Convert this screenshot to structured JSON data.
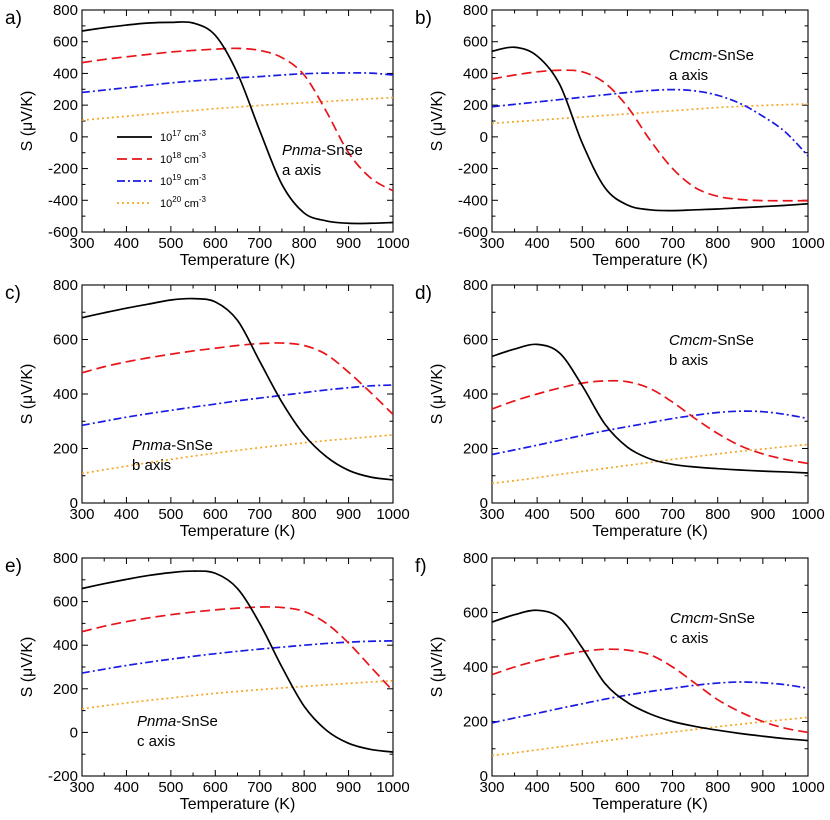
{
  "figure": {
    "series_styles": [
      {
        "key": "n17",
        "color": "#000000",
        "dash": ""
      },
      {
        "key": "n18",
        "color": "#e8141a",
        "dash": "10,5"
      },
      {
        "key": "n19",
        "color": "#1a1ae6",
        "dash": "8,3,2,3"
      },
      {
        "key": "n20",
        "color": "#f5a623",
        "dash": "2,3"
      }
    ],
    "legend": {
      "entries": [
        {
          "base": "10",
          "exp": "17",
          "unit": " cm",
          "unit_exp": "-3"
        },
        {
          "base": "10",
          "exp": "18",
          "unit": " cm",
          "unit_exp": "-3"
        },
        {
          "base": "10",
          "exp": "19",
          "unit": " cm",
          "unit_exp": "-3"
        },
        {
          "base": "10",
          "exp": "20",
          "unit": " cm",
          "unit_exp": "-3"
        }
      ]
    }
  },
  "chart_data": [
    {
      "type": "line",
      "panel_label": "a)",
      "annotation": {
        "italic": "Pnma",
        "rest": "-SnSe",
        "axis_line": "a axis"
      },
      "xlabel": "Temperature (K)",
      "ylabel_prefix": "S (",
      "ylabel_mu": "μ",
      "ylabel_suffix": "V/K)",
      "xlim": [
        300,
        1000
      ],
      "ylim": [
        -600,
        800
      ],
      "xticks": [
        300,
        400,
        500,
        600,
        700,
        800,
        900,
        1000
      ],
      "yticks": [
        -600,
        -400,
        -200,
        0,
        200,
        400,
        600,
        800
      ],
      "show_legend": true,
      "x": [
        300,
        350,
        400,
        450,
        500,
        550,
        600,
        650,
        700,
        750,
        800,
        850,
        900,
        950,
        1000
      ],
      "series": [
        {
          "name": "10^17 cm^-3",
          "values": [
            668,
            688,
            705,
            718,
            722,
            718,
            640,
            400,
            40,
            -300,
            -480,
            -530,
            -545,
            -545,
            -540
          ]
        },
        {
          "name": "10^18 cm^-3",
          "values": [
            468,
            488,
            505,
            520,
            535,
            545,
            553,
            558,
            545,
            500,
            390,
            160,
            -100,
            -260,
            -340
          ]
        },
        {
          "name": "10^19 cm^-3",
          "values": [
            280,
            295,
            310,
            325,
            340,
            352,
            362,
            372,
            380,
            390,
            398,
            402,
            403,
            402,
            390
          ]
        },
        {
          "name": "10^20 cm^-3",
          "values": [
            105,
            118,
            130,
            143,
            155,
            166,
            178,
            188,
            198,
            207,
            215,
            223,
            232,
            240,
            248
          ]
        }
      ]
    },
    {
      "type": "line",
      "panel_label": "b)",
      "annotation": {
        "italic": "Cmcm",
        "rest": "-SnSe",
        "axis_line": "a axis"
      },
      "xlabel": "Temperature (K)",
      "ylabel_prefix": "S (",
      "ylabel_mu": "μ",
      "ylabel_suffix": "V/K)",
      "xlim": [
        300,
        1000
      ],
      "ylim": [
        -600,
        800
      ],
      "xticks": [
        300,
        400,
        500,
        600,
        700,
        800,
        900,
        1000
      ],
      "yticks": [
        -600,
        -400,
        -200,
        0,
        200,
        400,
        600,
        800
      ],
      "show_legend": false,
      "x": [
        300,
        350,
        400,
        450,
        500,
        550,
        600,
        650,
        700,
        750,
        800,
        850,
        900,
        950,
        1000
      ],
      "series": [
        {
          "name": "10^17 cm^-3",
          "values": [
            540,
            565,
            510,
            330,
            -40,
            -320,
            -430,
            -460,
            -465,
            -460,
            -455,
            -447,
            -440,
            -432,
            -422
          ]
        },
        {
          "name": "10^18 cm^-3",
          "values": [
            365,
            390,
            410,
            420,
            410,
            340,
            190,
            -20,
            -200,
            -320,
            -375,
            -395,
            -402,
            -403,
            -403
          ]
        },
        {
          "name": "10^19 cm^-3",
          "values": [
            190,
            205,
            220,
            235,
            250,
            265,
            280,
            292,
            298,
            290,
            262,
            210,
            130,
            30,
            -120
          ]
        },
        {
          "name": "10^20 cm^-3",
          "values": [
            85,
            95,
            105,
            115,
            125,
            135,
            145,
            155,
            165,
            175,
            185,
            192,
            198,
            203,
            207
          ]
        }
      ]
    },
    {
      "type": "line",
      "panel_label": "c)",
      "annotation": {
        "italic": "Pnma",
        "rest": "-SnSe",
        "axis_line": "b axis"
      },
      "xlabel": "Temperature (K)",
      "ylabel_prefix": "S (",
      "ylabel_mu": "μ",
      "ylabel_suffix": "V/K)",
      "xlim": [
        300,
        1000
      ],
      "ylim": [
        0,
        800
      ],
      "xticks": [
        300,
        400,
        500,
        600,
        700,
        800,
        900,
        1000
      ],
      "yticks": [
        0,
        200,
        400,
        600,
        800
      ],
      "show_legend": false,
      "x": [
        300,
        350,
        400,
        450,
        500,
        550,
        600,
        650,
        700,
        750,
        800,
        850,
        900,
        950,
        1000
      ],
      "series": [
        {
          "name": "10^17 cm^-3",
          "values": [
            680,
            698,
            715,
            730,
            745,
            750,
            738,
            670,
            520,
            370,
            250,
            170,
            120,
            95,
            85
          ]
        },
        {
          "name": "10^18 cm^-3",
          "values": [
            478,
            500,
            518,
            533,
            546,
            558,
            568,
            578,
            585,
            587,
            578,
            545,
            480,
            405,
            325
          ]
        },
        {
          "name": "10^19 cm^-3",
          "values": [
            285,
            300,
            315,
            328,
            340,
            352,
            363,
            375,
            385,
            395,
            405,
            415,
            423,
            430,
            433
          ]
        },
        {
          "name": "10^20 cm^-3",
          "values": [
            108,
            122,
            135,
            148,
            160,
            172,
            183,
            193,
            203,
            212,
            221,
            229,
            236,
            243,
            250
          ]
        }
      ]
    },
    {
      "type": "line",
      "panel_label": "d)",
      "annotation": {
        "italic": "Cmcm",
        "rest": "-SnSe",
        "axis_line": "b axis"
      },
      "xlabel": "Temperature (K)",
      "ylabel_prefix": "S (",
      "ylabel_mu": "μ",
      "ylabel_suffix": "V/K)",
      "xlim": [
        300,
        1000
      ],
      "ylim": [
        0,
        800
      ],
      "xticks": [
        300,
        400,
        500,
        600,
        700,
        800,
        900,
        1000
      ],
      "yticks": [
        0,
        200,
        400,
        600,
        800
      ],
      "show_legend": false,
      "x": [
        300,
        350,
        400,
        450,
        500,
        550,
        600,
        650,
        700,
        750,
        800,
        850,
        900,
        950,
        1000
      ],
      "series": [
        {
          "name": "10^17 cm^-3",
          "values": [
            538,
            565,
            582,
            550,
            430,
            290,
            205,
            162,
            142,
            132,
            126,
            121,
            117,
            114,
            110
          ]
        },
        {
          "name": "10^18 cm^-3",
          "values": [
            345,
            375,
            400,
            422,
            440,
            448,
            445,
            420,
            370,
            310,
            255,
            210,
            180,
            160,
            145
          ]
        },
        {
          "name": "10^19 cm^-3",
          "values": [
            178,
            195,
            212,
            230,
            248,
            265,
            280,
            295,
            310,
            322,
            332,
            337,
            335,
            325,
            310
          ]
        },
        {
          "name": "10^20 cm^-3",
          "values": [
            72,
            82,
            93,
            105,
            116,
            127,
            138,
            149,
            160,
            170,
            180,
            190,
            198,
            207,
            215
          ]
        }
      ]
    },
    {
      "type": "line",
      "panel_label": "e)",
      "annotation": {
        "italic": "Pnma",
        "rest": "-SnSe",
        "axis_line": "c axis"
      },
      "xlabel": "Temperature (K)",
      "ylabel_prefix": "S (",
      "ylabel_mu": "μ",
      "ylabel_suffix": "V/K)",
      "xlim": [
        300,
        1000
      ],
      "ylim": [
        -200,
        800
      ],
      "xticks": [
        300,
        400,
        500,
        600,
        700,
        800,
        900,
        1000
      ],
      "yticks": [
        -200,
        0,
        200,
        400,
        600,
        800
      ],
      "show_legend": false,
      "x": [
        300,
        350,
        400,
        450,
        500,
        550,
        600,
        650,
        700,
        750,
        800,
        850,
        900,
        950,
        1000
      ],
      "series": [
        {
          "name": "10^17 cm^-3",
          "values": [
            660,
            682,
            702,
            720,
            733,
            740,
            730,
            660,
            500,
            300,
            120,
            10,
            -50,
            -78,
            -90
          ]
        },
        {
          "name": "10^18 cm^-3",
          "values": [
            462,
            487,
            508,
            525,
            540,
            552,
            562,
            570,
            575,
            573,
            555,
            500,
            410,
            300,
            190
          ]
        },
        {
          "name": "10^19 cm^-3",
          "values": [
            272,
            290,
            307,
            322,
            336,
            349,
            361,
            372,
            382,
            391,
            400,
            408,
            414,
            418,
            420
          ]
        },
        {
          "name": "10^20 cm^-3",
          "values": [
            108,
            122,
            135,
            147,
            158,
            169,
            179,
            188,
            196,
            204,
            211,
            218,
            225,
            231,
            237
          ]
        }
      ]
    },
    {
      "type": "line",
      "panel_label": "f)",
      "annotation": {
        "italic": "Cmcm",
        "rest": "-SnSe",
        "axis_line": "c axis"
      },
      "xlabel": "Temperature (K)",
      "ylabel_prefix": "S (",
      "ylabel_mu": "μ",
      "ylabel_suffix": "V/K)",
      "xlim": [
        300,
        1000
      ],
      "ylim": [
        0,
        800
      ],
      "xticks": [
        300,
        400,
        500,
        600,
        700,
        800,
        900,
        1000
      ],
      "yticks": [
        0,
        200,
        400,
        600,
        800
      ],
      "show_legend": false,
      "x": [
        300,
        350,
        400,
        450,
        500,
        550,
        600,
        650,
        700,
        750,
        800,
        850,
        900,
        950,
        1000
      ],
      "series": [
        {
          "name": "10^17 cm^-3",
          "values": [
            565,
            592,
            608,
            580,
            470,
            340,
            270,
            228,
            200,
            182,
            168,
            156,
            146,
            137,
            130
          ]
        },
        {
          "name": "10^18 cm^-3",
          "values": [
            372,
            400,
            423,
            442,
            457,
            465,
            462,
            445,
            400,
            340,
            280,
            235,
            200,
            175,
            160
          ]
        },
        {
          "name": "10^19 cm^-3",
          "values": [
            195,
            213,
            230,
            248,
            265,
            282,
            297,
            310,
            322,
            333,
            341,
            345,
            342,
            335,
            322
          ]
        },
        {
          "name": "10^20 cm^-3",
          "values": [
            75,
            85,
            96,
            107,
            118,
            129,
            140,
            151,
            161,
            171,
            181,
            190,
            199,
            207,
            215
          ]
        }
      ]
    }
  ]
}
